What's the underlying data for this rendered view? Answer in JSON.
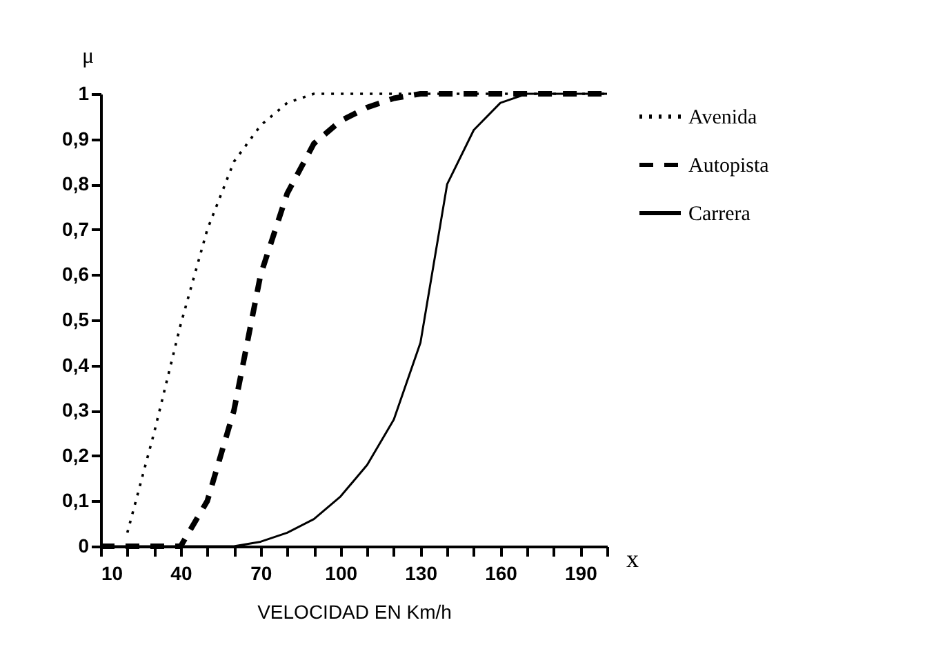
{
  "chart_data": {
    "type": "line",
    "xlabel": "VELOCIDAD EN Km/h",
    "ylabel": "μ",
    "annotations": [
      "x"
    ],
    "xlim": [
      10,
      200
    ],
    "ylim": [
      0,
      1
    ],
    "xticks": [
      10,
      {
        "value": 20,
        "label": null
      },
      {
        "value": 30,
        "label": null
      },
      40,
      {
        "value": 50,
        "label": null
      },
      {
        "value": 60,
        "label": null
      },
      70,
      {
        "value": 80,
        "label": null
      },
      {
        "value": 90,
        "label": null
      },
      100,
      {
        "value": 110,
        "label": null
      },
      {
        "value": 120,
        "label": null
      },
      130,
      {
        "value": 140,
        "label": null
      },
      {
        "value": 150,
        "label": null
      },
      160,
      {
        "value": 170,
        "label": null
      },
      {
        "value": 180,
        "label": null
      },
      190,
      {
        "value": 200,
        "label": null
      }
    ],
    "yticks": [
      0,
      {
        "value": 0.1,
        "label": "0,1"
      },
      {
        "value": 0.2,
        "label": "0,2"
      },
      {
        "value": 0.3,
        "label": "0,3"
      },
      {
        "value": 0.4,
        "label": "0,4"
      },
      {
        "value": 0.5,
        "label": "0,5"
      },
      {
        "value": 0.6,
        "label": "0,6"
      },
      {
        "value": 0.7,
        "label": "0,7"
      },
      {
        "value": 0.8,
        "label": "0,8"
      },
      {
        "value": 0.9,
        "label": "0,9"
      },
      1
    ],
    "grid": false,
    "legend": "right",
    "marker": "none",
    "series": [
      {
        "name": "Avenida",
        "color": "#000000",
        "line_style": "dotted",
        "x": [
          20,
          30,
          40,
          50,
          60,
          70,
          80,
          90,
          100,
          200
        ],
        "values": [
          0.03,
          0.25,
          0.49,
          0.7,
          0.85,
          0.93,
          0.98,
          1,
          1,
          1
        ]
      },
      {
        "name": "Autopista",
        "color": "#000000",
        "line_style": "dashed",
        "x": [
          10,
          20,
          30,
          40,
          50,
          60,
          70,
          80,
          90,
          100,
          110,
          120,
          130,
          200
        ],
        "values": [
          0,
          0,
          0,
          0,
          0.1,
          0.3,
          0.6,
          0.78,
          0.89,
          0.94,
          0.97,
          0.99,
          1,
          1
        ]
      },
      {
        "name": "Carrera",
        "color": "#000000",
        "line_style": "solid",
        "x": [
          10,
          60,
          70,
          80,
          90,
          100,
          110,
          120,
          130,
          140,
          150,
          160,
          170,
          200
        ],
        "values": [
          0,
          0,
          0.01,
          0.03,
          0.06,
          0.11,
          0.18,
          0.28,
          0.45,
          0.8,
          0.92,
          0.98,
          1,
          1
        ]
      }
    ]
  }
}
